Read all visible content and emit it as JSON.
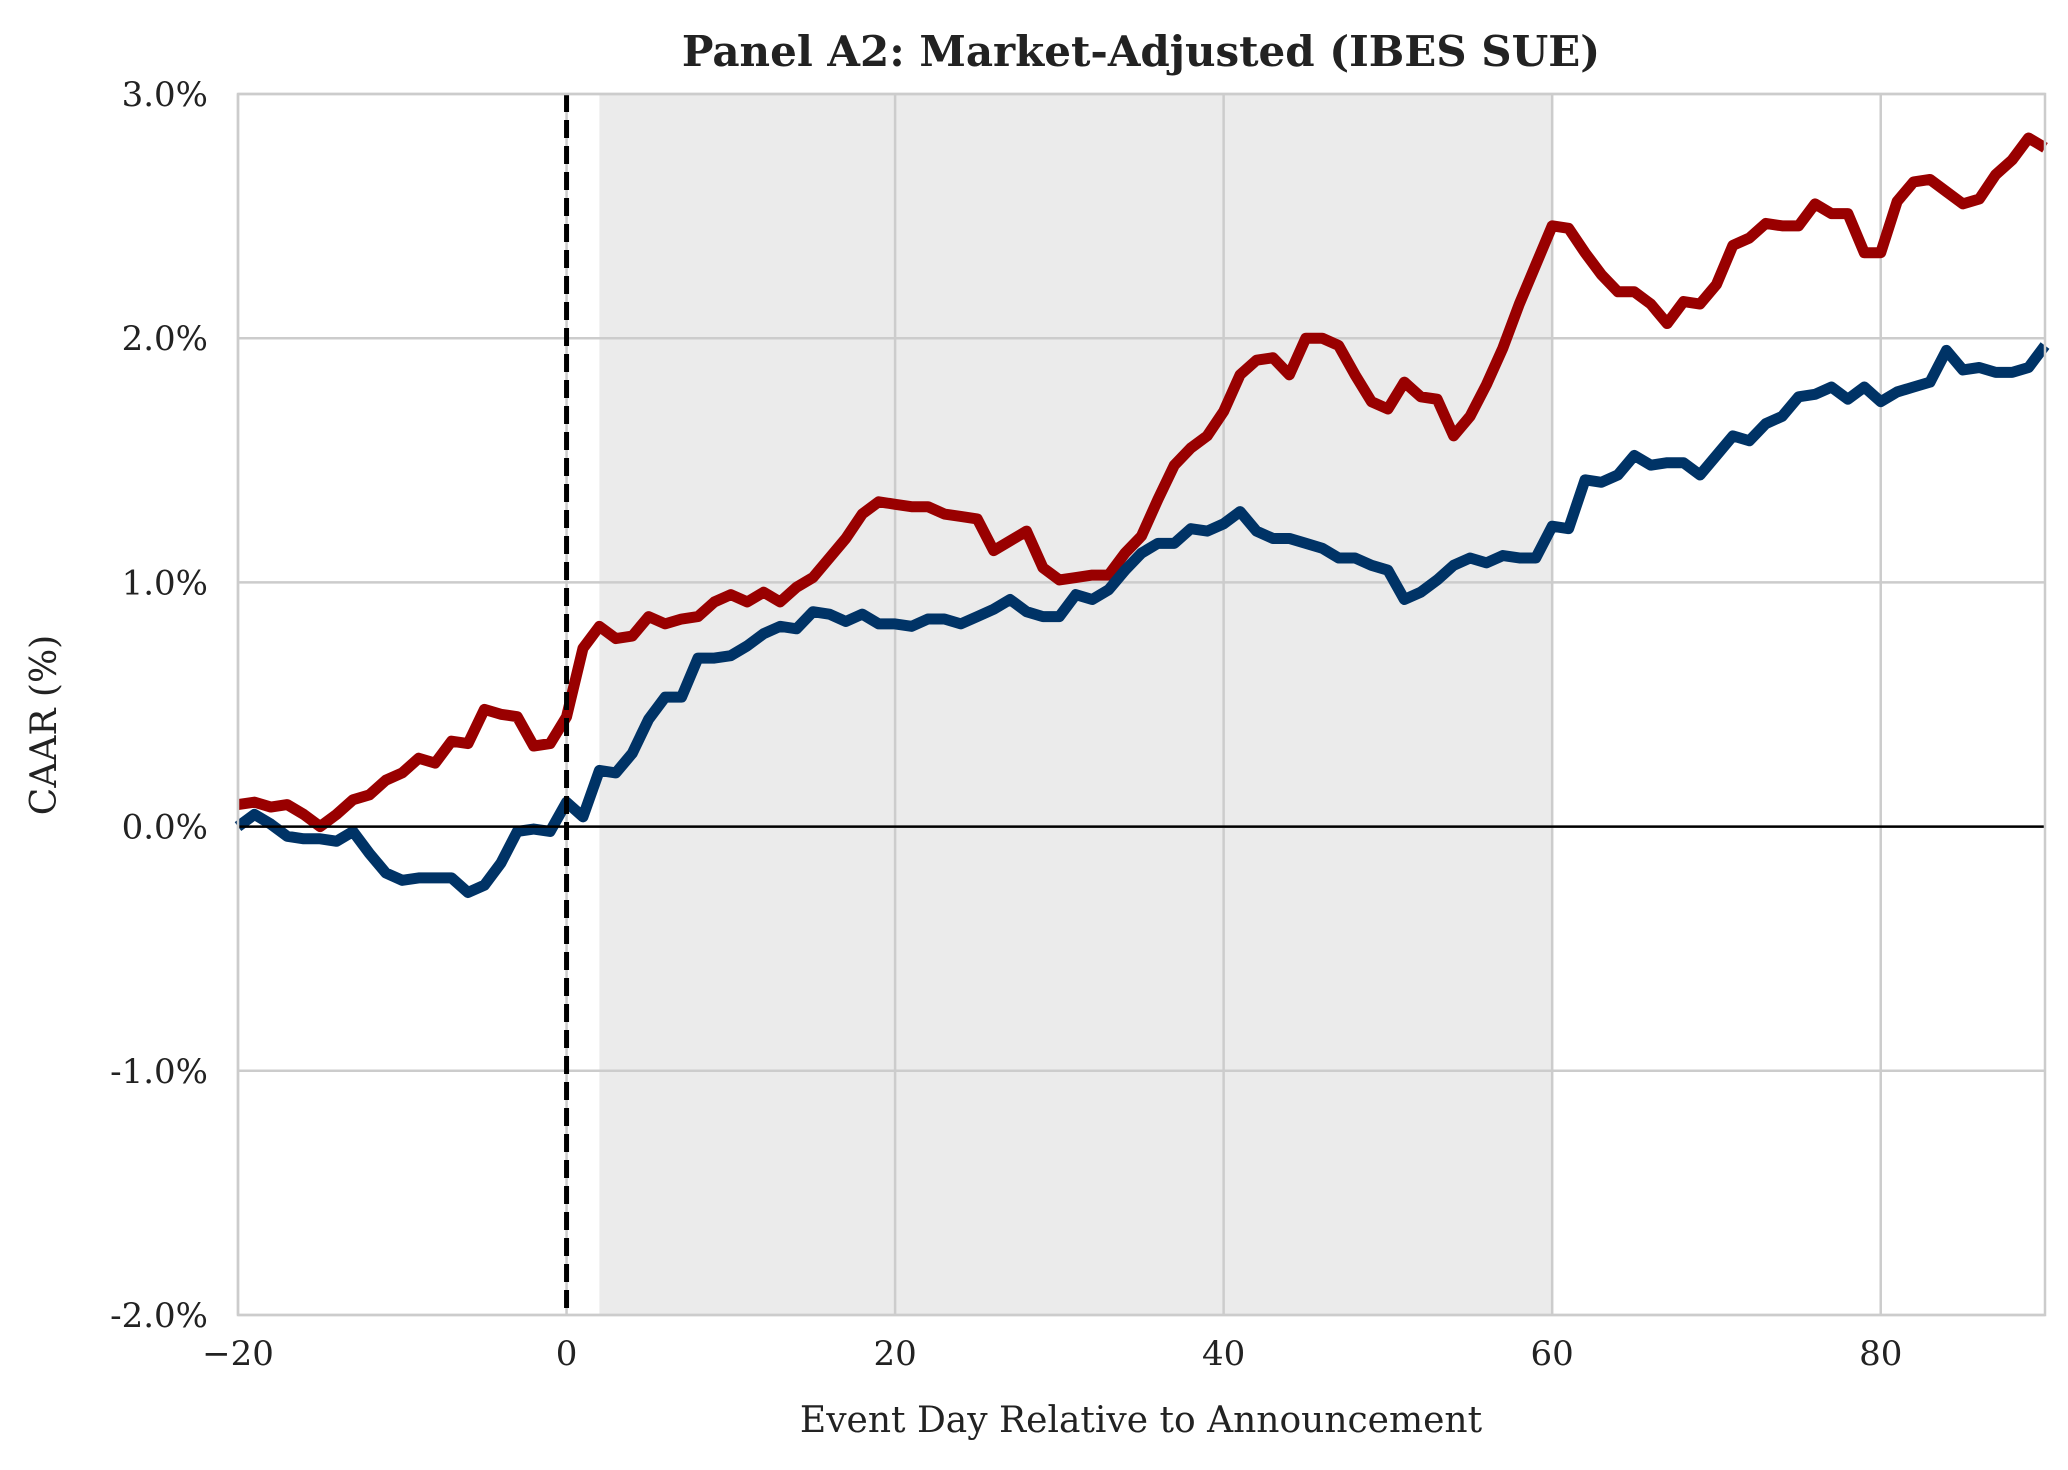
{
  "chart_data": {
    "type": "line",
    "title": "Panel A2: Market-Adjusted (IBES SUE)",
    "xlabel": "Event Day Relative to Announcement",
    "ylabel": "CAAR (%)",
    "xlim": [
      -20,
      90
    ],
    "ylim": [
      -2.0,
      3.0
    ],
    "xticks": [
      -20,
      0,
      20,
      40,
      60,
      80
    ],
    "xtick_labels": [
      "−20",
      "0",
      "20",
      "40",
      "60",
      "80"
    ],
    "yticks": [
      -2.0,
      -1.0,
      0.0,
      1.0,
      2.0,
      3.0
    ],
    "ytick_labels": [
      "-2.0%",
      "-1.0%",
      "0.0%",
      "1.0%",
      "2.0%",
      "3.0%"
    ],
    "grid": true,
    "shaded_region": [
      2,
      60
    ],
    "event_line_x": 0,
    "zero_line_y": 0,
    "x": [
      -20,
      -19,
      -18,
      -17,
      -16,
      -15,
      -14,
      -13,
      -12,
      -11,
      -10,
      -9,
      -8,
      -7,
      -6,
      -5,
      -4,
      -3,
      -2,
      -1,
      0,
      1,
      2,
      3,
      4,
      5,
      6,
      7,
      8,
      9,
      10,
      11,
      12,
      13,
      14,
      15,
      16,
      17,
      18,
      19,
      20,
      21,
      22,
      23,
      24,
      25,
      26,
      27,
      28,
      29,
      30,
      31,
      32,
      33,
      34,
      35,
      36,
      37,
      38,
      39,
      40,
      41,
      42,
      43,
      44,
      45,
      46,
      47,
      48,
      49,
      50,
      51,
      52,
      53,
      54,
      55,
      56,
      57,
      58,
      59,
      60,
      61,
      62,
      63,
      64,
      65,
      66,
      67,
      68,
      69,
      70,
      71,
      72,
      73,
      74,
      75,
      76,
      77,
      78,
      79,
      80,
      81,
      82,
      83,
      84,
      85,
      86,
      87,
      88,
      89,
      90
    ],
    "series": [
      {
        "color": "#990000",
        "values": [
          0.09,
          0.1,
          0.08,
          0.09,
          0.05,
          0.0,
          0.05,
          0.11,
          0.13,
          0.19,
          0.22,
          0.28,
          0.26,
          0.35,
          0.34,
          0.48,
          0.46,
          0.45,
          0.33,
          0.34,
          0.45,
          0.73,
          0.82,
          0.77,
          0.78,
          0.86,
          0.83,
          0.85,
          0.86,
          0.92,
          0.95,
          0.92,
          0.96,
          0.92,
          0.98,
          1.02,
          1.1,
          1.18,
          1.28,
          1.33,
          1.32,
          1.31,
          1.31,
          1.28,
          1.27,
          1.26,
          1.13,
          1.17,
          1.21,
          1.06,
          1.01,
          1.02,
          1.03,
          1.03,
          1.12,
          1.19,
          1.34,
          1.48,
          1.55,
          1.6,
          1.7,
          1.85,
          1.91,
          1.92,
          1.85,
          2.0,
          2.0,
          1.97,
          1.85,
          1.74,
          1.71,
          1.82,
          1.76,
          1.75,
          1.6,
          1.68,
          1.81,
          1.96,
          2.14,
          2.3,
          2.46,
          2.45,
          2.35,
          2.26,
          2.19,
          2.19,
          2.14,
          2.06,
          2.15,
          2.14,
          2.22,
          2.38,
          2.41,
          2.47,
          2.46,
          2.46,
          2.55,
          2.51,
          2.51,
          2.35,
          2.35,
          2.56,
          2.64,
          2.65,
          2.6,
          2.55,
          2.57,
          2.67,
          2.73,
          2.82,
          2.78
        ]
      },
      {
        "color": "#003366",
        "values": [
          0.0,
          0.05,
          0.01,
          -0.04,
          -0.05,
          -0.05,
          -0.06,
          -0.02,
          -0.11,
          -0.19,
          -0.22,
          -0.21,
          -0.21,
          -0.21,
          -0.27,
          -0.24,
          -0.15,
          -0.02,
          -0.01,
          -0.02,
          0.1,
          0.04,
          0.23,
          0.22,
          0.3,
          0.44,
          0.53,
          0.53,
          0.69,
          0.69,
          0.7,
          0.74,
          0.79,
          0.82,
          0.81,
          0.88,
          0.87,
          0.84,
          0.87,
          0.83,
          0.83,
          0.82,
          0.85,
          0.85,
          0.83,
          0.86,
          0.89,
          0.93,
          0.88,
          0.86,
          0.86,
          0.95,
          0.93,
          0.97,
          1.05,
          1.12,
          1.16,
          1.16,
          1.22,
          1.21,
          1.24,
          1.29,
          1.21,
          1.18,
          1.18,
          1.16,
          1.14,
          1.1,
          1.1,
          1.07,
          1.05,
          0.93,
          0.96,
          1.01,
          1.07,
          1.1,
          1.08,
          1.11,
          1.1,
          1.1,
          1.23,
          1.22,
          1.42,
          1.41,
          1.44,
          1.52,
          1.48,
          1.49,
          1.49,
          1.44,
          1.52,
          1.6,
          1.58,
          1.65,
          1.68,
          1.76,
          1.77,
          1.8,
          1.75,
          1.8,
          1.74,
          1.78,
          1.8,
          1.82,
          1.95,
          1.87,
          1.88,
          1.86,
          1.86,
          1.88,
          1.97
        ]
      }
    ]
  }
}
